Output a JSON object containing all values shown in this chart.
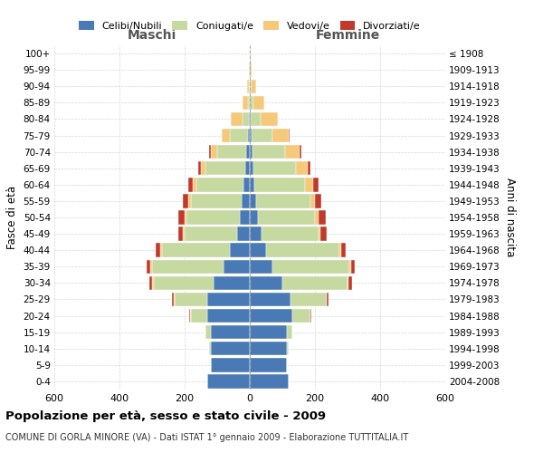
{
  "age_groups": [
    "0-4",
    "5-9",
    "10-14",
    "15-19",
    "20-24",
    "25-29",
    "30-34",
    "35-39",
    "40-44",
    "45-49",
    "50-54",
    "55-59",
    "60-64",
    "65-69",
    "70-74",
    "75-79",
    "80-84",
    "85-89",
    "90-94",
    "95-99",
    "100+"
  ],
  "birth_years": [
    "2004-2008",
    "1999-2003",
    "1994-1998",
    "1989-1993",
    "1984-1988",
    "1979-1983",
    "1974-1978",
    "1969-1973",
    "1964-1968",
    "1959-1963",
    "1954-1958",
    "1949-1953",
    "1944-1948",
    "1939-1943",
    "1934-1938",
    "1929-1933",
    "1924-1928",
    "1919-1923",
    "1914-1918",
    "1909-1913",
    "≤ 1908"
  ],
  "colors": {
    "celibi": "#4a7ab5",
    "coniugati": "#c5d9a0",
    "vedovi": "#f5c97a",
    "divorziati": "#c0392b"
  },
  "maschi": {
    "celibi": [
      130,
      120,
      120,
      120,
      130,
      130,
      110,
      80,
      60,
      40,
      30,
      25,
      20,
      15,
      10,
      5,
      2,
      0,
      0,
      0,
      0
    ],
    "coniugati": [
      0,
      0,
      5,
      15,
      50,
      100,
      185,
      220,
      210,
      160,
      165,
      155,
      145,
      120,
      90,
      55,
      20,
      5,
      2,
      0,
      0
    ],
    "vedovi": [
      0,
      0,
      0,
      0,
      2,
      3,
      5,
      5,
      5,
      5,
      5,
      8,
      10,
      15,
      20,
      25,
      35,
      18,
      5,
      2,
      0
    ],
    "divorziati": [
      0,
      0,
      0,
      0,
      3,
      5,
      8,
      12,
      15,
      15,
      20,
      18,
      15,
      8,
      5,
      2,
      0,
      0,
      0,
      0,
      0
    ]
  },
  "femmine": {
    "celibi": [
      120,
      115,
      115,
      115,
      130,
      125,
      100,
      70,
      50,
      35,
      25,
      20,
      15,
      12,
      8,
      5,
      2,
      0,
      0,
      0,
      0
    ],
    "coniugati": [
      0,
      0,
      5,
      15,
      55,
      110,
      200,
      235,
      225,
      175,
      175,
      165,
      155,
      130,
      100,
      65,
      30,
      10,
      5,
      0,
      0
    ],
    "vedovi": [
      0,
      0,
      0,
      0,
      1,
      2,
      3,
      5,
      5,
      8,
      12,
      15,
      25,
      35,
      45,
      50,
      55,
      35,
      15,
      5,
      2
    ],
    "divorziati": [
      0,
      0,
      0,
      0,
      3,
      5,
      10,
      12,
      15,
      18,
      20,
      20,
      15,
      8,
      5,
      3,
      0,
      0,
      0,
      0,
      0
    ]
  },
  "title": "Popolazione per età, sesso e stato civile - 2009",
  "subtitle": "COMUNE DI GORLA MINORE (VA) - Dati ISTAT 1° gennaio 2009 - Elaborazione TUTTITALIA.IT",
  "ylabel_left": "Fasce di età",
  "ylabel_right": "Anni di nascita",
  "xlabel_left": "Maschi",
  "xlabel_right": "Femmine",
  "xlim": 600,
  "background_color": "#ffffff",
  "grid_color": "#cccccc"
}
